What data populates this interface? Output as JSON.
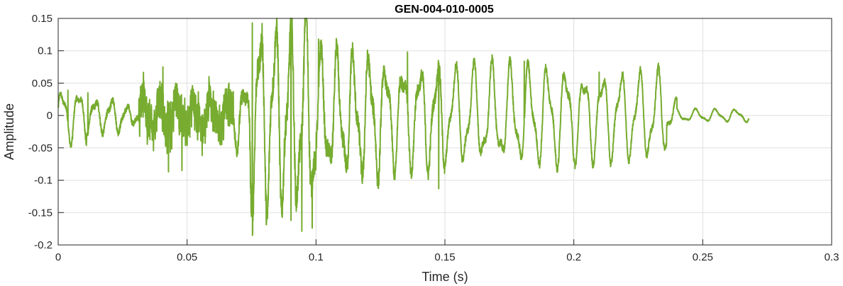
{
  "chart_data": {
    "type": "line",
    "title": "GEN-004-010-0005",
    "xlabel": "Time (s)",
    "ylabel": "Amplitude",
    "xlim": [
      0,
      0.3
    ],
    "ylim": [
      -0.2,
      0.15
    ],
    "xticks": [
      0,
      0.05,
      0.1,
      0.15,
      0.2,
      0.25,
      0.3
    ],
    "xtick_labels": [
      "0",
      "0.05",
      "0.1",
      "0.15",
      "0.2",
      "0.25",
      "0.3"
    ],
    "yticks": [
      -0.2,
      -0.15,
      -0.1,
      -0.05,
      0,
      0.05,
      0.1,
      0.15
    ],
    "ytick_labels": [
      "-0.2",
      "-0.15",
      "-0.1",
      "-0.05",
      "0",
      "0.05",
      "0.1",
      "0.15"
    ],
    "grid": true,
    "line_color": "#77AC30",
    "signal_end": 0.268,
    "series": [
      {
        "segments": [
          {
            "t0": 0.0,
            "t1": 0.011,
            "f": 155,
            "amp": 0.035,
            "noise": 0.004
          },
          {
            "t0": 0.011,
            "t1": 0.026,
            "f": 160,
            "amp": 0.022,
            "noise": 0.005
          },
          {
            "t0": 0.026,
            "t1": 0.031,
            "f": 180,
            "amp": 0.012,
            "noise": 0.004
          },
          {
            "t0": 0.031,
            "t1": 0.068,
            "f": 150,
            "amp": 0.022,
            "noise": 0.025,
            "hf": 0.025
          },
          {
            "t0": 0.068,
            "t1": 0.074,
            "f": 160,
            "amp": 0.04,
            "noise": 0.012
          },
          {
            "t0": 0.074,
            "t1": 0.1,
            "f": 170,
            "amp": 0.125,
            "noise": 0.02
          },
          {
            "t0": 0.1,
            "t1": 0.125,
            "f": 160,
            "amp": 0.08,
            "noise": 0.015
          },
          {
            "t0": 0.125,
            "t1": 0.15,
            "f": 150,
            "amp": 0.07,
            "noise": 0.01
          },
          {
            "t0": 0.15,
            "t1": 0.2,
            "f": 140,
            "amp": 0.065,
            "noise": 0.006
          },
          {
            "t0": 0.2,
            "t1": 0.236,
            "f": 140,
            "amp": 0.058,
            "noise": 0.005
          },
          {
            "t0": 0.236,
            "t1": 0.24,
            "f": 140,
            "amp": 0.02,
            "noise": 0.003
          },
          {
            "t0": 0.24,
            "t1": 0.268,
            "f": 130,
            "amp": 0.008,
            "noise": 0.001
          }
        ],
        "peaks": [
          {
            "t": 0.0038,
            "y": 0.039
          },
          {
            "t": 0.0056,
            "y": -0.036
          },
          {
            "t": 0.0115,
            "y": 0.035
          },
          {
            "t": 0.0406,
            "y": 0.075
          },
          {
            "t": 0.0428,
            "y": -0.087
          },
          {
            "t": 0.048,
            "y": -0.085
          },
          {
            "t": 0.0753,
            "y": 0.143
          },
          {
            "t": 0.0791,
            "y": 0.142
          },
          {
            "t": 0.0813,
            "y": -0.125
          },
          {
            "t": 0.0903,
            "y": -0.162
          },
          {
            "t": 0.0945,
            "y": -0.179
          },
          {
            "t": 0.0985,
            "y": -0.174
          },
          {
            "t": 0.101,
            "y": 0.118
          },
          {
            "t": 0.1355,
            "y": 0.098
          },
          {
            "t": 0.1476,
            "y": -0.113
          },
          {
            "t": 0.1808,
            "y": 0.084
          },
          {
            "t": 0.2098,
            "y": 0.067
          },
          {
            "t": 0.2325,
            "y": 0.062
          }
        ]
      }
    ]
  }
}
